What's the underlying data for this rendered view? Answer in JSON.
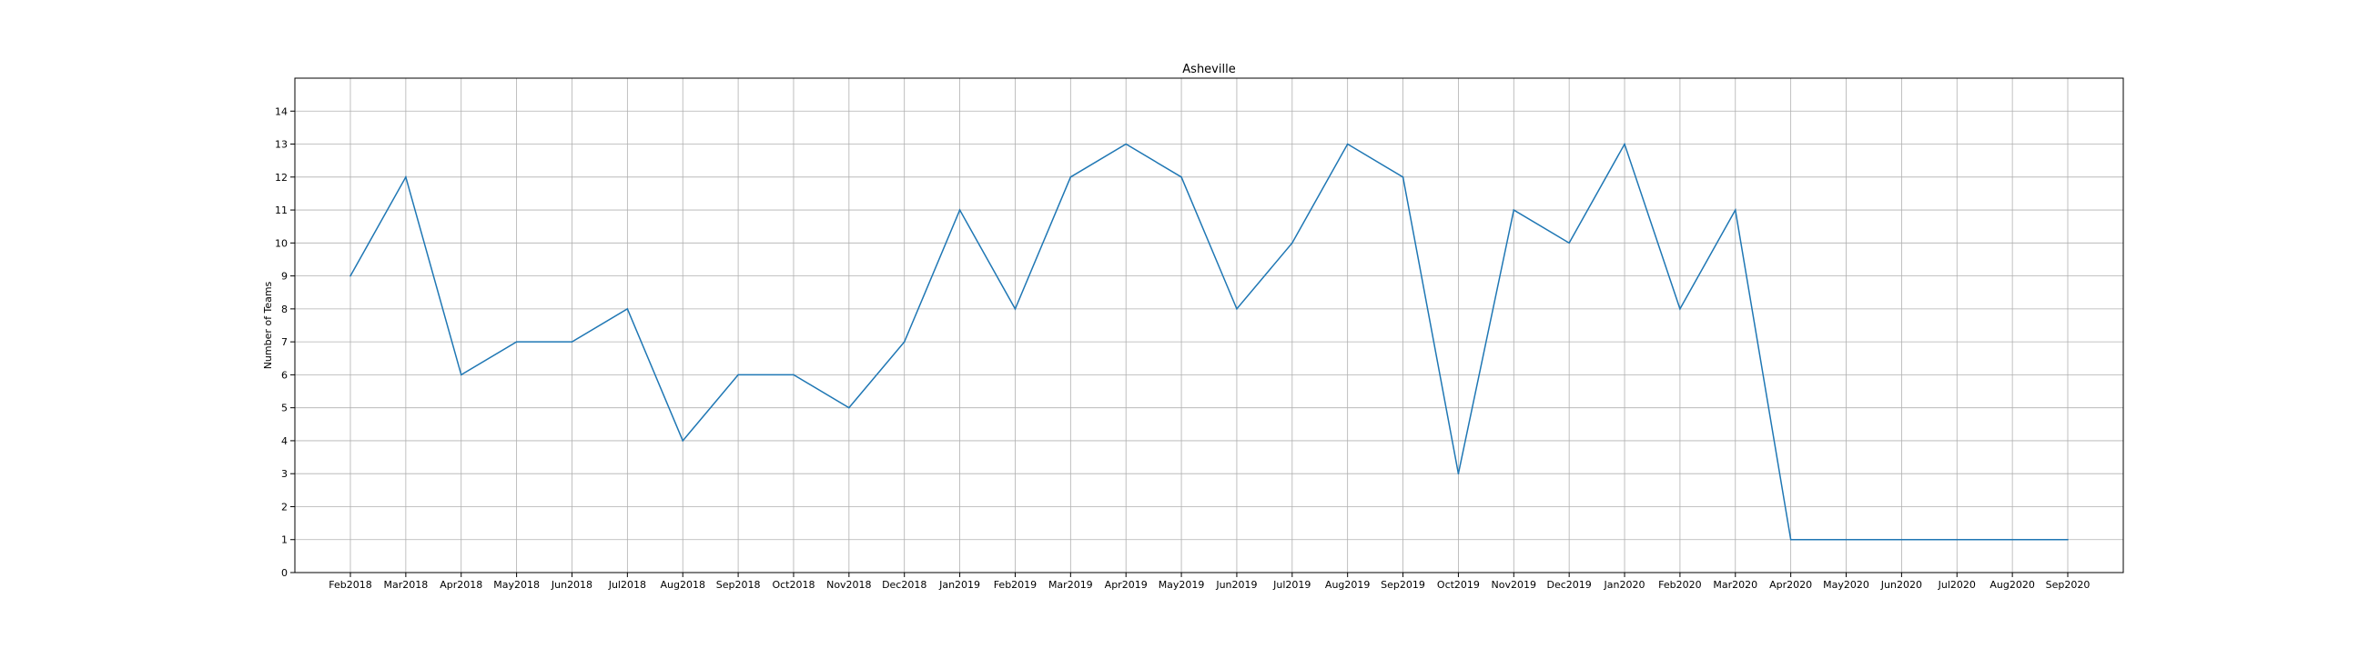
{
  "chart_data": {
    "type": "line",
    "title": "Asheville",
    "xlabel": "",
    "ylabel": "Number of Teams",
    "ylim": [
      0,
      15
    ],
    "yticks": [
      0,
      1,
      2,
      3,
      4,
      5,
      6,
      7,
      8,
      9,
      10,
      11,
      12,
      13,
      14
    ],
    "grid": true,
    "legend": "none",
    "line_color": "#1f77b4",
    "categories": [
      "Feb2018",
      "Mar2018",
      "Apr2018",
      "May2018",
      "Jun2018",
      "Jul2018",
      "Aug2018",
      "Sep2018",
      "Oct2018",
      "Nov2018",
      "Dec2018",
      "Jan2019",
      "Feb2019",
      "Mar2019",
      "Apr2019",
      "May2019",
      "Jun2019",
      "Jul2019",
      "Aug2019",
      "Sep2019",
      "Oct2019",
      "Nov2019",
      "Dec2019",
      "Jan2020",
      "Feb2020",
      "Mar2020",
      "Apr2020",
      "May2020",
      "Jun2020",
      "Jul2020",
      "Aug2020",
      "Sep2020"
    ],
    "series": [
      {
        "values": [
          9,
          12,
          6,
          7,
          7,
          8,
          4,
          6,
          6,
          5,
          7,
          11,
          8,
          12,
          13,
          12,
          8,
          10,
          13,
          12,
          3,
          11,
          10,
          13,
          8,
          11,
          1,
          1,
          1,
          1,
          1,
          1
        ]
      }
    ]
  }
}
